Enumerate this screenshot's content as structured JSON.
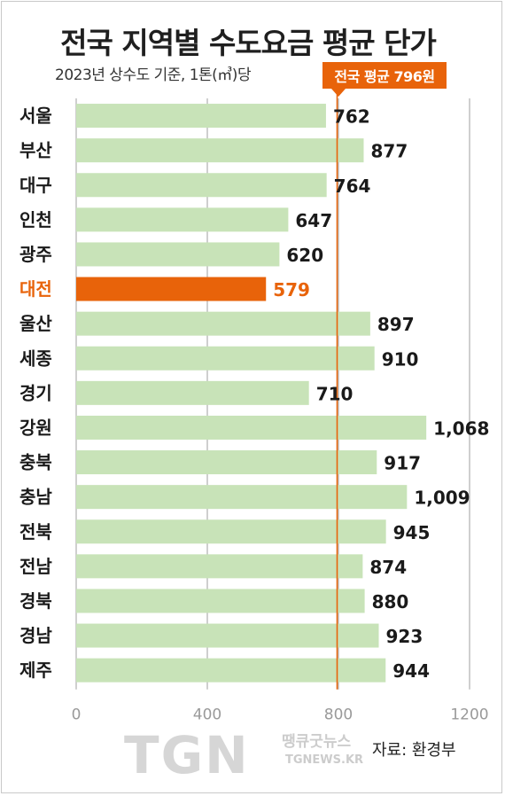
{
  "title": "전국 지역별 수도요금 평균 단가",
  "subtitle": "2023년 상수도 기준, 1톤(㎥)당",
  "average_badge": "전국 평균 796원",
  "source": "자료: 환경부",
  "watermark": {
    "logo": "TGN",
    "name": "땡큐굿뉴스",
    "url": "TGNEWS.KR"
  },
  "colors": {
    "bar": "#c8e3b8",
    "highlight": "#e8630a",
    "average_line": "#e8630a"
  },
  "chart_data": {
    "type": "bar",
    "orientation": "horizontal",
    "categories": [
      "서울",
      "부산",
      "대구",
      "인천",
      "광주",
      "대전",
      "울산",
      "세종",
      "경기",
      "강원",
      "충북",
      "충남",
      "전북",
      "전남",
      "경북",
      "경남",
      "제주"
    ],
    "values": [
      762,
      877,
      764,
      647,
      620,
      579,
      897,
      910,
      710,
      1068,
      917,
      1009,
      945,
      874,
      880,
      923,
      944
    ],
    "value_labels": [
      "762",
      "877",
      "764",
      "647",
      "620",
      "579",
      "897",
      "910",
      "710",
      "1,068",
      "917",
      "1,009",
      "945",
      "874",
      "880",
      "923",
      "944"
    ],
    "highlight_category": "대전",
    "average": 796,
    "xlim": [
      0,
      1200
    ],
    "xticks": [
      "0",
      "400",
      "800",
      "1200"
    ],
    "grid": true
  }
}
